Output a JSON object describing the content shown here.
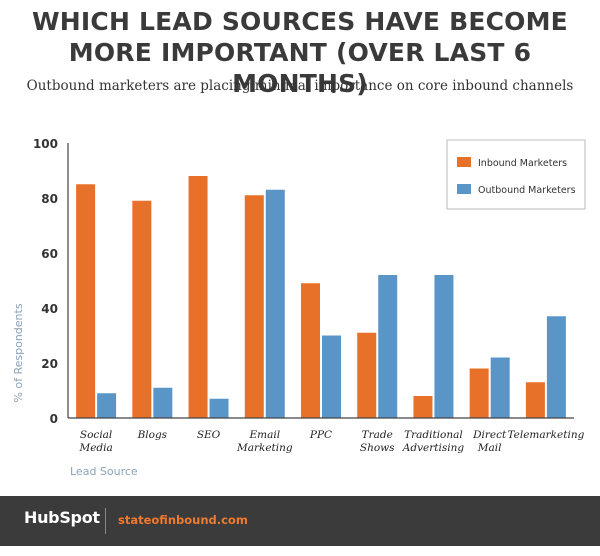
{
  "header": {
    "title_line1": "WHICH LEAD SOURCES HAVE BECOME",
    "title_line2": "MORE IMPORTANT (OVER LAST 6 MONTHS)",
    "subtitle": "Outbound marketers are placing minimal importance on core inbound channels"
  },
  "colors": {
    "inbound": "#e8712a",
    "outbound": "#5a95c8",
    "axis_text": "#8aa2b8"
  },
  "chart_data": {
    "type": "bar",
    "categories": [
      [
        "Social",
        "Media"
      ],
      [
        "Blogs"
      ],
      [
        "SEO"
      ],
      [
        "Email",
        "Marketing"
      ],
      [
        "PPC"
      ],
      [
        "Trade",
        "Shows"
      ],
      [
        "Traditional",
        "Advertising"
      ],
      [
        "Direct",
        "Mail"
      ],
      [
        "Telemarketing"
      ]
    ],
    "series": [
      {
        "name": "Inbound Marketers",
        "values": [
          85,
          79,
          88,
          81,
          49,
          31,
          8,
          18,
          13
        ]
      },
      {
        "name": "Outbound Marketers",
        "values": [
          9,
          11,
          7,
          83,
          30,
          52,
          52,
          22,
          37
        ]
      }
    ],
    "xlabel": "Lead Source",
    "ylabel": "% of Respondents",
    "ylim": [
      0,
      100
    ],
    "yticks": [
      0,
      20,
      40,
      60,
      80,
      100
    ],
    "grid": false,
    "legend": "top-right"
  },
  "footer": {
    "logo": "HubSpot",
    "site": "stateofinbound.com"
  }
}
